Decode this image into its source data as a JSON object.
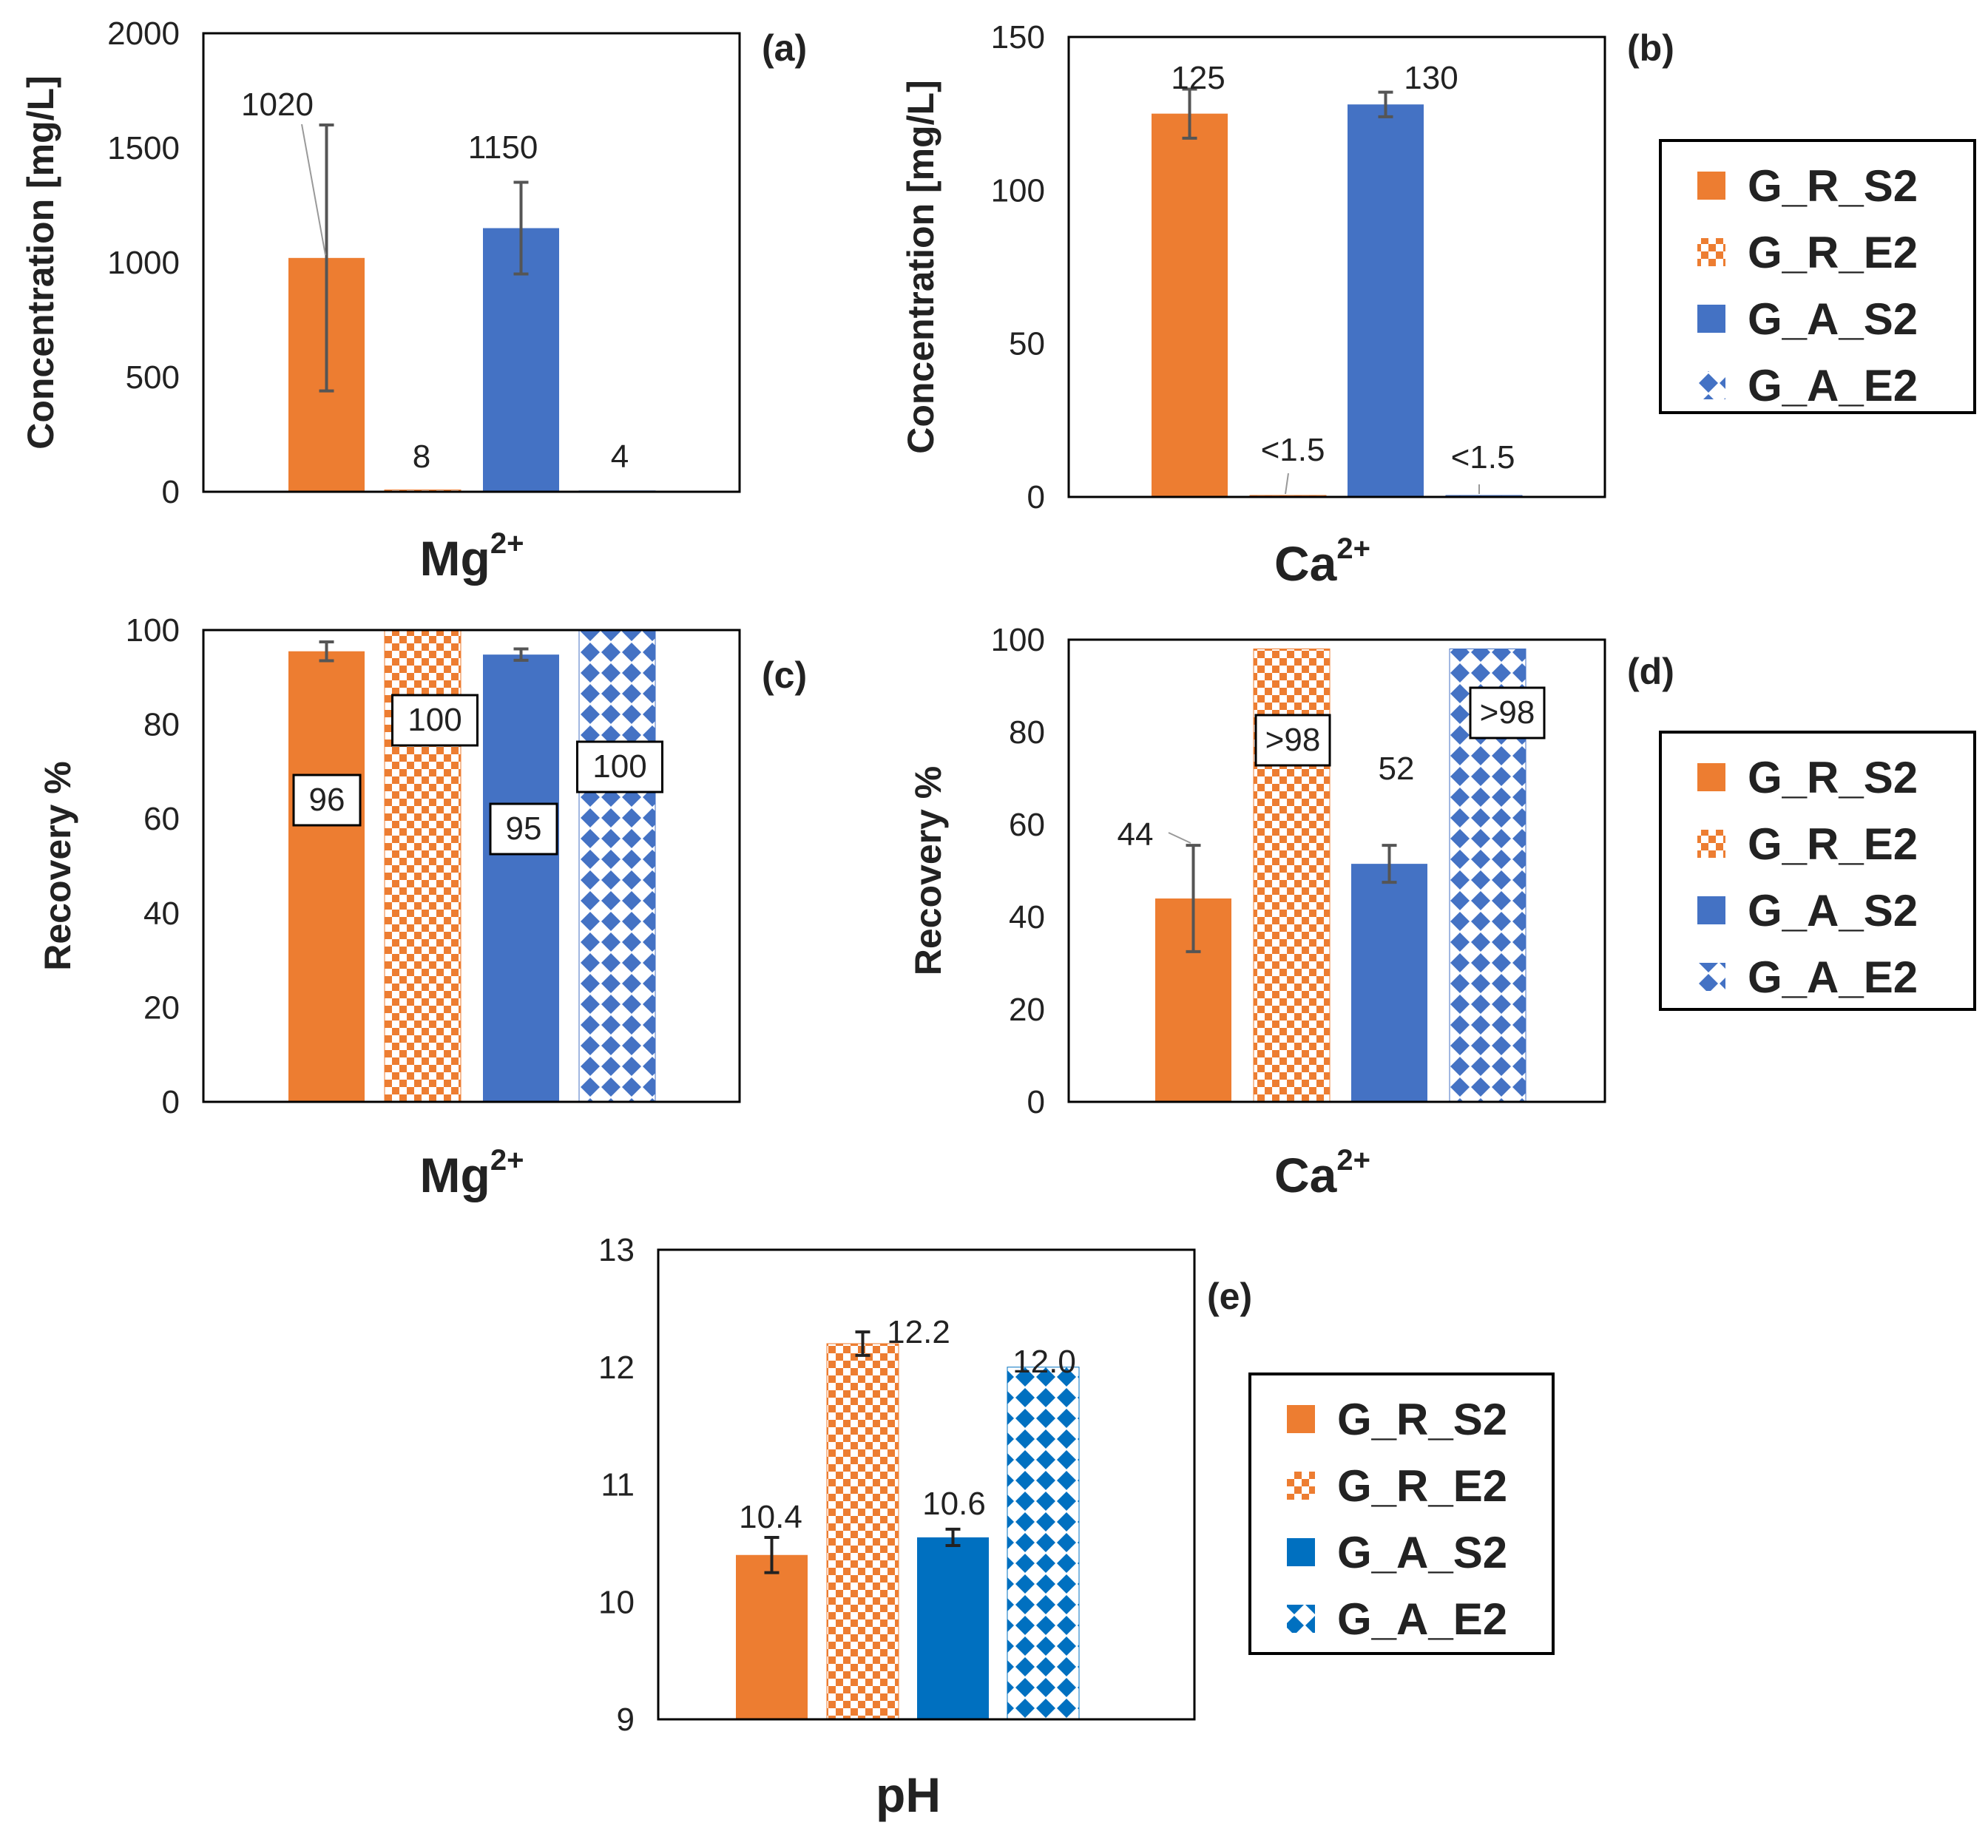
{
  "legend_series": [
    "G_R_S2",
    "G_R_E2",
    "G_A_S2",
    "G_A_E2"
  ],
  "colors": {
    "orange": "#ed7d31",
    "blue_b": "#4472c4",
    "blue_d": "#0070c0",
    "axis": "#000000",
    "error": "#555555"
  },
  "chart_data": [
    {
      "panel": "(a)",
      "type": "bar",
      "xlabel": "Mg",
      "xlabel_sup": "2+",
      "ylabel": "Concentration [mg/L]",
      "ylim": [
        0,
        2000
      ],
      "yticks": [
        "0",
        "500",
        "1000",
        "1500",
        "2000"
      ],
      "series": [
        {
          "name": "G_R_S2",
          "value": 1020,
          "error": 580,
          "label": "1020"
        },
        {
          "name": "G_R_E2",
          "value": 8,
          "error": 0,
          "label": "8"
        },
        {
          "name": "G_A_S2",
          "value": 1150,
          "error": 200,
          "label": "1150"
        },
        {
          "name": "G_A_E2",
          "value": 4,
          "error": 0,
          "label": "4"
        }
      ]
    },
    {
      "panel": "(b)",
      "type": "bar",
      "xlabel": "Ca",
      "xlabel_sup": "2+",
      "ylabel": "Concentration [mg/L]",
      "ylim": [
        0,
        150
      ],
      "yticks": [
        "0",
        "50",
        "100",
        "150"
      ],
      "series": [
        {
          "name": "G_R_S2",
          "value": 125,
          "error": 8,
          "label": "125"
        },
        {
          "name": "G_R_E2",
          "value": 0.5,
          "error": 0,
          "label": "<1.5"
        },
        {
          "name": "G_A_S2",
          "value": 128,
          "error": 4,
          "label": "130"
        },
        {
          "name": "G_A_E2",
          "value": 0.5,
          "error": 0,
          "label": "<1.5"
        }
      ]
    },
    {
      "panel": "(c)",
      "type": "bar",
      "xlabel": "Mg",
      "xlabel_sup": "2+",
      "ylabel": "Recovery %",
      "ylim": [
        0,
        100
      ],
      "yticks": [
        "0",
        "20",
        "40",
        "60",
        "80",
        "100"
      ],
      "series": [
        {
          "name": "G_R_S2",
          "value": 95.5,
          "error": 2,
          "label": "96"
        },
        {
          "name": "G_R_E2",
          "value": 100,
          "error": 0,
          "label": "100"
        },
        {
          "name": "G_A_S2",
          "value": 94.8,
          "error": 1.2,
          "label": "95"
        },
        {
          "name": "G_A_E2",
          "value": 100,
          "error": 0,
          "label": "100"
        }
      ]
    },
    {
      "panel": "(d)",
      "type": "bar",
      "xlabel": "Ca",
      "xlabel_sup": "2+",
      "ylabel": "Recovery %",
      "ylim": [
        0,
        100
      ],
      "yticks": [
        "0",
        "20",
        "40",
        "60",
        "80",
        "100"
      ],
      "series": [
        {
          "name": "G_R_S2",
          "value": 44,
          "error": 11.5,
          "label": "44"
        },
        {
          "name": "G_R_E2",
          "value": 98,
          "error": 0,
          "label": ">98"
        },
        {
          "name": "G_A_S2",
          "value": 51.5,
          "error": 4,
          "label": "52"
        },
        {
          "name": "G_A_E2",
          "value": 98,
          "error": 0,
          "label": ">98"
        }
      ]
    },
    {
      "panel": "(e)",
      "type": "bar",
      "xlabel": "pH",
      "xlabel_sup": "",
      "ylabel": "",
      "ylim": [
        9,
        13
      ],
      "yticks": [
        "9",
        "10",
        "11",
        "12",
        "13"
      ],
      "series": [
        {
          "name": "G_R_S2",
          "value": 10.4,
          "error": 0.15,
          "label": "10.4"
        },
        {
          "name": "G_R_E2",
          "value": 12.2,
          "error": 0.1,
          "label": "12.2"
        },
        {
          "name": "G_A_S2",
          "value": 10.55,
          "error": 0.07,
          "label": "10.6"
        },
        {
          "name": "G_A_E2",
          "value": 12.0,
          "error": 0,
          "label": "12.0"
        }
      ]
    }
  ]
}
